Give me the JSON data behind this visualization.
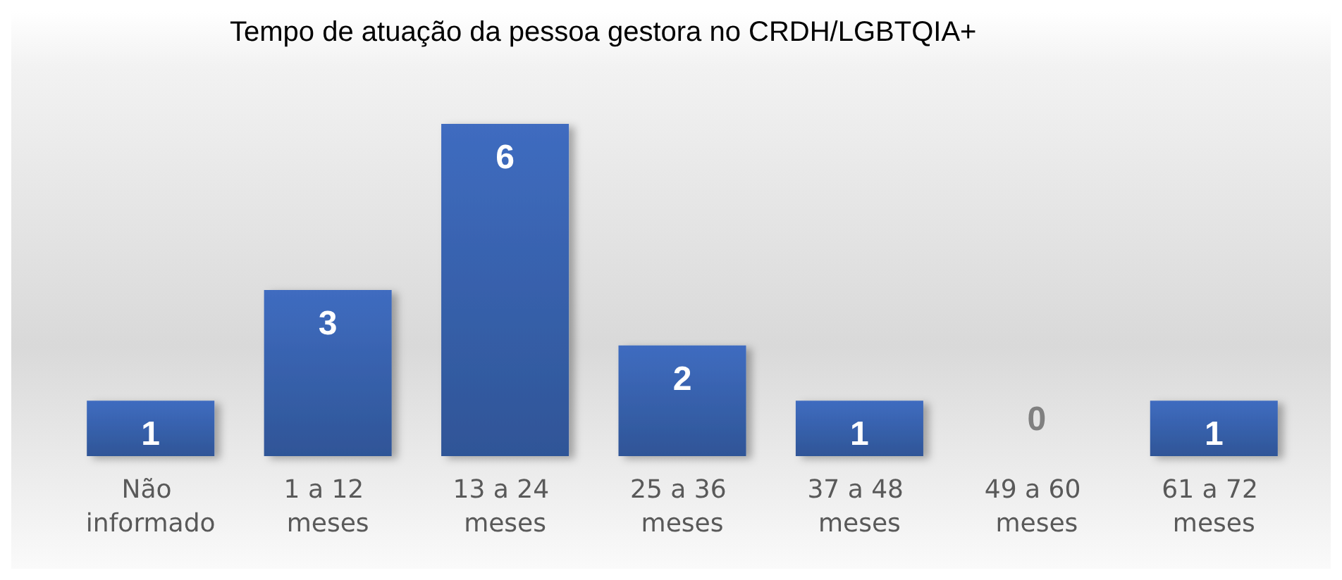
{
  "chart_data": {
    "type": "bar",
    "title": "Tempo de atuação da pessoa gestora no CRDH/LGBTQIA+",
    "categories": [
      "Não informado",
      "1 a 12 meses",
      "13 a 24 meses",
      "25 a 36 meses",
      "37 a 48 meses",
      "49 a 60 meses",
      "61 a 72 meses"
    ],
    "values": [
      1,
      3,
      6,
      2,
      1,
      0,
      1
    ],
    "color": "#3f6cc0",
    "data_labels": true
  }
}
